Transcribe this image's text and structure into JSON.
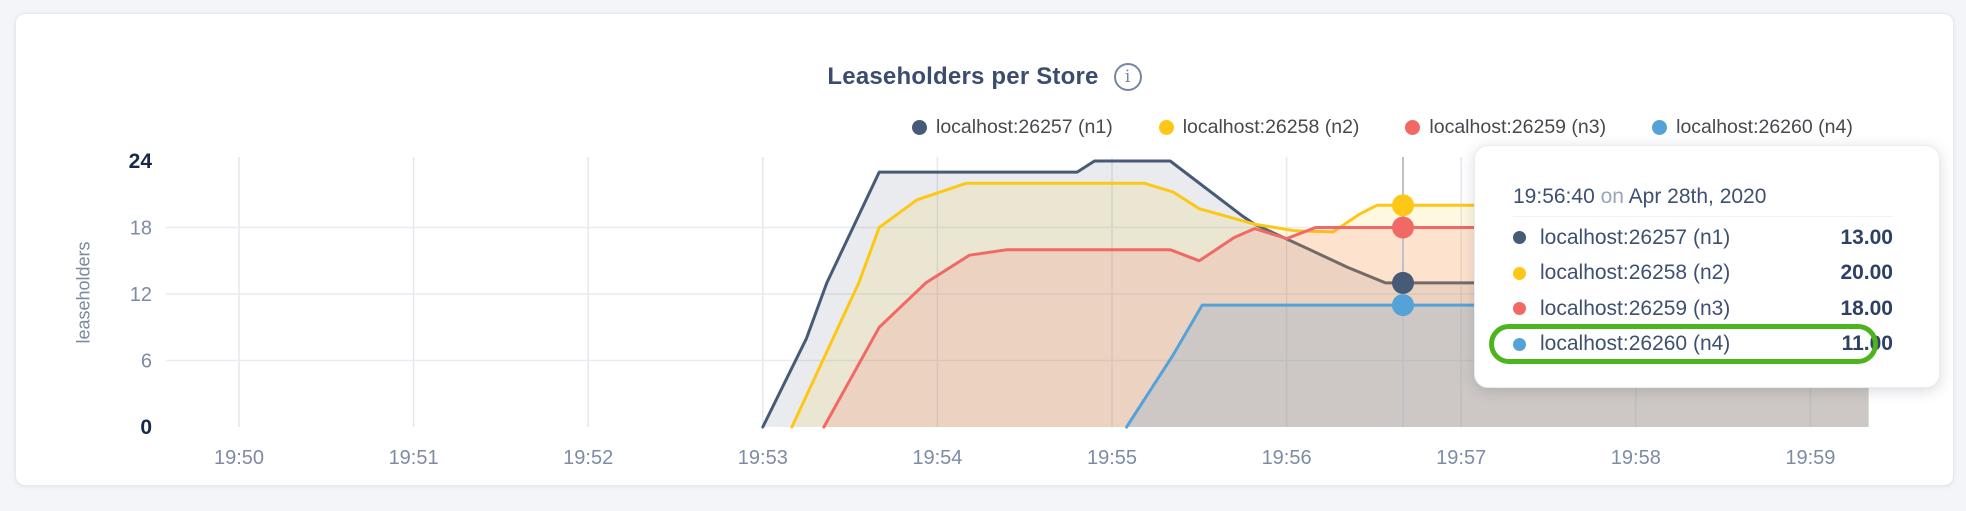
{
  "header": {
    "title": "Leaseholders per Store",
    "info_icon": "i"
  },
  "legend": {
    "items": [
      {
        "label": "localhost:26257 (n1)",
        "color": "#475b77"
      },
      {
        "label": "localhost:26258 (n2)",
        "color": "#fdc718"
      },
      {
        "label": "localhost:26259 (n3)",
        "color": "#f16964"
      },
      {
        "label": "localhost:26260 (n4)",
        "color": "#55a2d8"
      }
    ]
  },
  "tooltip": {
    "time": "19:56:40",
    "connector": "on",
    "date": "Apr 28th, 2020",
    "rows": [
      {
        "label": "localhost:26257 (n1)",
        "value": "13.00",
        "color": "#475b77"
      },
      {
        "label": "localhost:26258 (n2)",
        "value": "20.00",
        "color": "#fdc718"
      },
      {
        "label": "localhost:26259 (n3)",
        "value": "18.00",
        "color": "#f16964"
      },
      {
        "label": "localhost:26260 (n4)",
        "value": "11.00",
        "color": "#55a2d8"
      }
    ],
    "highlighted_row": 3,
    "highlight_color": "#4db41e"
  },
  "chart_data": {
    "type": "area",
    "title": "Leaseholders per Store",
    "ylabel": "leaseholders",
    "xlabel": "",
    "ylim": [
      0,
      24
    ],
    "grid": true,
    "legend_position": "top",
    "x_unit": "seconds after 19:50 on Apr 28th, 2020",
    "x_ticks": [
      {
        "label": "19:50",
        "sec": 0
      },
      {
        "label": "19:51",
        "sec": 60
      },
      {
        "label": "19:52",
        "sec": 120
      },
      {
        "label": "19:53",
        "sec": 180
      },
      {
        "label": "19:54",
        "sec": 240
      },
      {
        "label": "19:55",
        "sec": 300
      },
      {
        "label": "19:56",
        "sec": 360
      },
      {
        "label": "19:57",
        "sec": 420
      },
      {
        "label": "19:58",
        "sec": 480
      },
      {
        "label": "19:59",
        "sec": 540
      }
    ],
    "y_ticks": [
      0,
      6,
      12,
      18,
      24
    ],
    "hover": {
      "time": "19:56:40",
      "sec": 400,
      "values": [
        13,
        20,
        18,
        11
      ]
    },
    "series": [
      {
        "name": "localhost:26257 (n1)",
        "color": "#475b77",
        "fill_opacity": 0.12,
        "points": [
          [
            180,
            0
          ],
          [
            195,
            8
          ],
          [
            202,
            13
          ],
          [
            220,
            23
          ],
          [
            288,
            23
          ],
          [
            294,
            24
          ],
          [
            320,
            24
          ],
          [
            345,
            19
          ],
          [
            349,
            18.3
          ],
          [
            368,
            16
          ],
          [
            381,
            14.4
          ],
          [
            394,
            13
          ],
          [
            560,
            13
          ]
        ]
      },
      {
        "name": "localhost:26258 (n2)",
        "color": "#fdc718",
        "fill_opacity": 0.13,
        "points": [
          [
            190,
            0
          ],
          [
            213,
            13
          ],
          [
            220,
            18
          ],
          [
            233,
            20.5
          ],
          [
            250,
            22
          ],
          [
            311,
            22
          ],
          [
            321,
            21.2
          ],
          [
            330,
            19.7
          ],
          [
            349,
            18.3
          ],
          [
            363,
            17.7
          ],
          [
            376,
            17.6
          ],
          [
            385,
            19.2
          ],
          [
            391,
            20
          ],
          [
            560,
            20
          ]
        ]
      },
      {
        "name": "localhost:26259 (n3)",
        "color": "#f16964",
        "fill_opacity": 0.15,
        "points": [
          [
            201,
            0
          ],
          [
            220,
            9
          ],
          [
            236,
            13
          ],
          [
            251,
            15.5
          ],
          [
            264,
            16
          ],
          [
            320,
            16
          ],
          [
            330,
            15
          ],
          [
            342,
            17.1
          ],
          [
            349,
            17.9
          ],
          [
            360,
            17
          ],
          [
            370,
            18
          ],
          [
            560,
            18
          ]
        ]
      },
      {
        "name": "localhost:26260 (n4)",
        "color": "#55a2d8",
        "fill_opacity": 0.2,
        "points": [
          [
            305,
            0
          ],
          [
            321,
            6.5
          ],
          [
            331,
            11
          ],
          [
            560,
            11
          ]
        ]
      }
    ]
  }
}
